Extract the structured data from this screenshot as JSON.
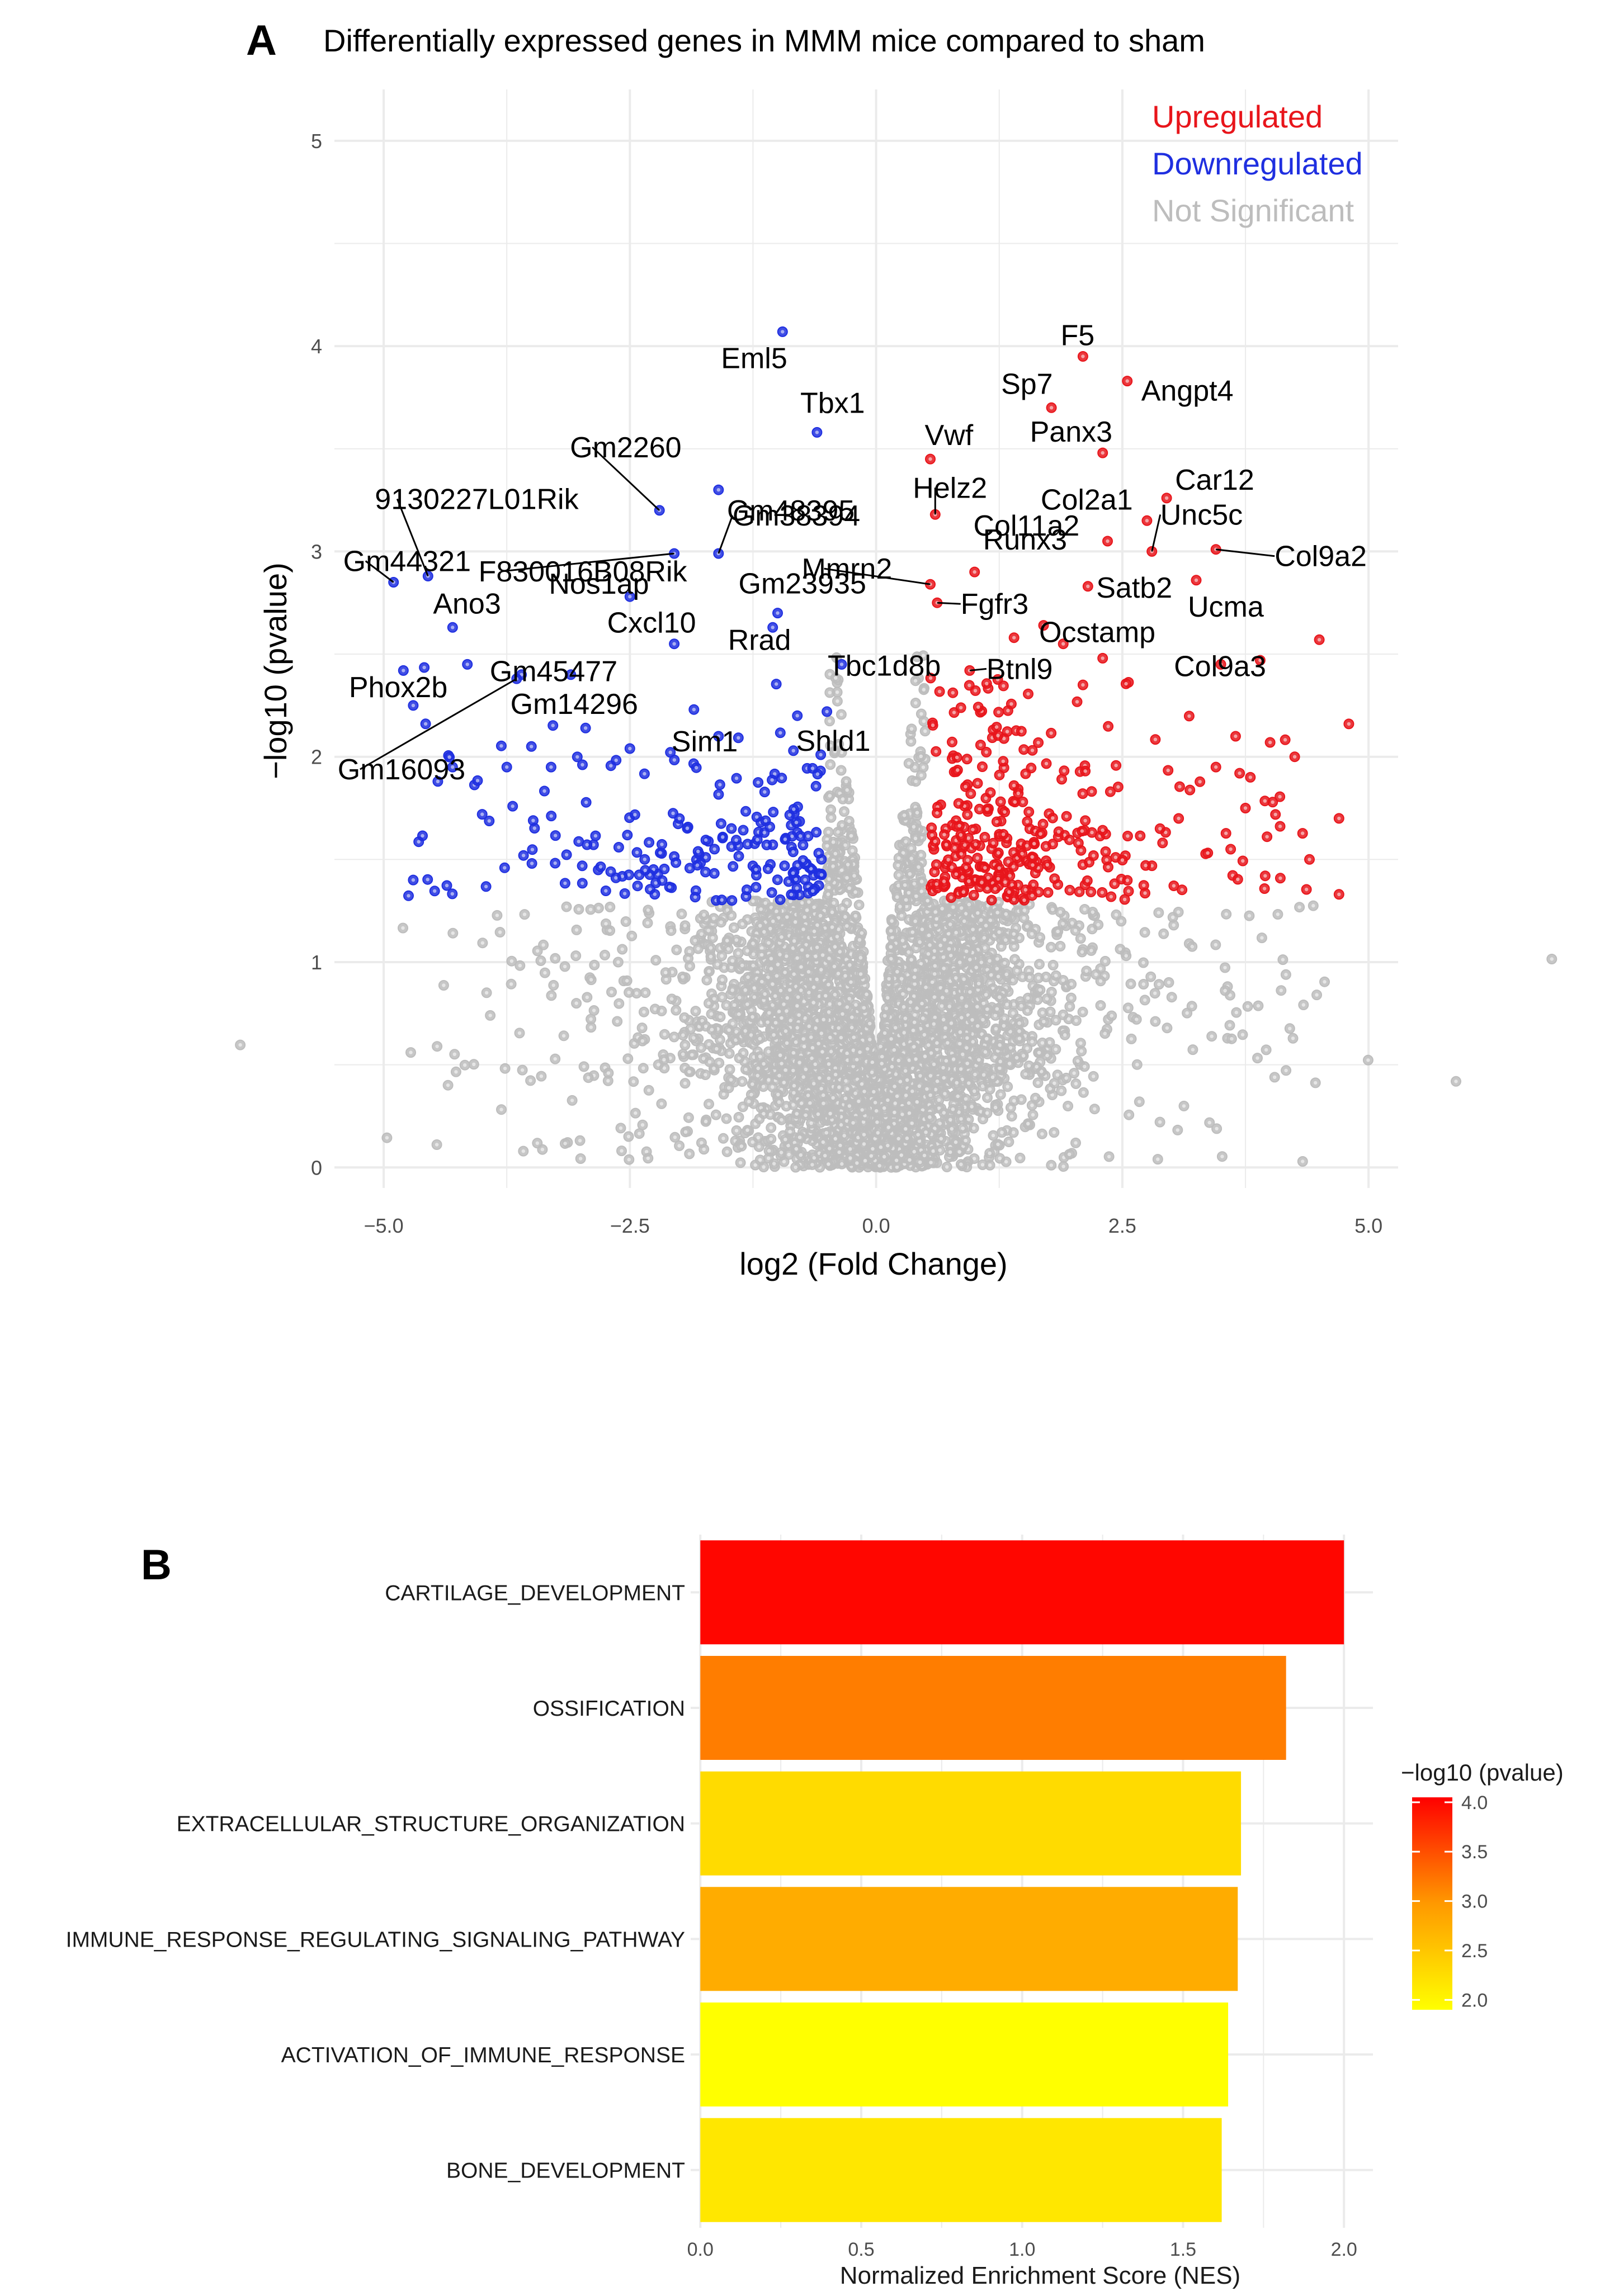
{
  "panel_a": {
    "letter": "A",
    "title": "Differentially expressed genes in MMM mice compared to sham"
  },
  "panel_b": {
    "letter": "B"
  },
  "colors": {
    "up": "#e8151b",
    "down": "#1f2fe0",
    "ns": "#bdbdbd",
    "grid": "#ebebeb",
    "axis_text": "#4d4d4d",
    "text": "#000000"
  },
  "chart_data": [
    {
      "type": "scatter",
      "title": "Differentially expressed genes in MMM mice compared to sham",
      "xlabel": "log2 (Fold Change)",
      "ylabel": "−log10 (pvalue)",
      "xlim": [
        -5.5,
        5.3
      ],
      "ylim": [
        -0.1,
        5.25
      ],
      "x_ticks": [
        -5.0,
        -2.5,
        0.0,
        2.5,
        5.0
      ],
      "x_tick_labels": [
        "−5.0",
        "−2.5",
        "0.0",
        "2.5",
        "5.0"
      ],
      "y_ticks": [
        0,
        1,
        2,
        3,
        4,
        5
      ],
      "y_tick_labels": [
        "0",
        "1",
        "2",
        "3",
        "4",
        "5"
      ],
      "grid": true,
      "legend_position": "top-right",
      "legend": [
        {
          "label": "Upregulated",
          "key": "up"
        },
        {
          "label": "Downregulated",
          "key": "down"
        },
        {
          "label": "Not Significant",
          "key": "ns"
        }
      ],
      "labeled_genes": [
        {
          "gene": "F5",
          "x": 2.1,
          "y": 3.95,
          "group": "up"
        },
        {
          "gene": "Angpt4",
          "x": 2.55,
          "y": 3.83,
          "group": "up"
        },
        {
          "gene": "Sp7",
          "x": 1.78,
          "y": 3.7,
          "group": "up"
        },
        {
          "gene": "Panx3",
          "x": 2.3,
          "y": 3.48,
          "group": "up"
        },
        {
          "gene": "Vwf",
          "x": 0.55,
          "y": 3.45,
          "group": "up"
        },
        {
          "gene": "Car12",
          "x": 2.95,
          "y": 3.26,
          "group": "up"
        },
        {
          "gene": "Helz2",
          "x": 0.6,
          "y": 3.18,
          "group": "up"
        },
        {
          "gene": "Col2a1",
          "x": 2.75,
          "y": 3.15,
          "group": "up"
        },
        {
          "gene": "Col11a2",
          "x": 2.35,
          "y": 3.05,
          "group": "up"
        },
        {
          "gene": "Unc5c",
          "x": 2.8,
          "y": 3.0,
          "group": "up"
        },
        {
          "gene": "Col9a2",
          "x": 3.45,
          "y": 3.01,
          "group": "up"
        },
        {
          "gene": "Runx3",
          "x": 1.0,
          "y": 2.9,
          "group": "up"
        },
        {
          "gene": "Mmrn2",
          "x": 0.55,
          "y": 2.84,
          "group": "up"
        },
        {
          "gene": "Satb2",
          "x": 2.15,
          "y": 2.83,
          "group": "up"
        },
        {
          "gene": "Ucma",
          "x": 3.25,
          "y": 2.86,
          "group": "up"
        },
        {
          "gene": "Fgfr3",
          "x": 0.62,
          "y": 2.75,
          "group": "up"
        },
        {
          "gene": "Col9a3",
          "x": 4.5,
          "y": 2.57,
          "group": "up"
        },
        {
          "gene": "Ocstamp",
          "x": 1.7,
          "y": 2.64,
          "group": "up"
        },
        {
          "gene": "Btnl9",
          "x": 0.95,
          "y": 2.42,
          "group": "up"
        },
        {
          "gene": "Eml5",
          "x": -0.95,
          "y": 4.07,
          "group": "down"
        },
        {
          "gene": "Tbx1",
          "x": -0.6,
          "y": 3.58,
          "group": "down"
        },
        {
          "gene": "Gm48395",
          "x": -1.6,
          "y": 3.3,
          "group": "down"
        },
        {
          "gene": "Gm2260",
          "x": -2.2,
          "y": 3.2,
          "group": "down"
        },
        {
          "gene": "Gm38394",
          "x": -1.6,
          "y": 2.99,
          "group": "down"
        },
        {
          "gene": "F830016B08Rik",
          "x": -2.05,
          "y": 2.99,
          "group": "down"
        },
        {
          "gene": "9130227L01Rik",
          "x": -4.55,
          "y": 2.88,
          "group": "down"
        },
        {
          "gene": "Gm44321",
          "x": -4.9,
          "y": 2.85,
          "group": "down"
        },
        {
          "gene": "Nos1ap",
          "x": -2.5,
          "y": 2.78,
          "group": "down"
        },
        {
          "gene": "Gm23935",
          "x": -1.0,
          "y": 2.7,
          "group": "down"
        },
        {
          "gene": "Ano3",
          "x": -4.3,
          "y": 2.63,
          "group": "down"
        },
        {
          "gene": "Rrad",
          "x": -1.05,
          "y": 2.63,
          "group": "down"
        },
        {
          "gene": "Cxcl10",
          "x": -2.05,
          "y": 2.55,
          "group": "down"
        },
        {
          "gene": "Tbc1d8b",
          "x": -0.35,
          "y": 2.45,
          "group": "down"
        },
        {
          "gene": "Gm45477",
          "x": -4.15,
          "y": 2.45,
          "group": "down"
        },
        {
          "gene": "Phox2b",
          "x": -4.7,
          "y": 2.25,
          "group": "down"
        },
        {
          "gene": "Gm14296",
          "x": -3.6,
          "y": 2.4,
          "group": "down"
        },
        {
          "gene": "Sim1",
          "x": -1.85,
          "y": 2.23,
          "group": "down"
        },
        {
          "gene": "Shld1",
          "x": -0.5,
          "y": 2.22,
          "group": "down"
        },
        {
          "gene": "Gm16093",
          "x": -3.65,
          "y": 2.38,
          "group": "down"
        }
      ],
      "extra_up": [
        [
          1.9,
          2.55
        ],
        [
          2.3,
          2.48
        ],
        [
          3.5,
          2.45
        ],
        [
          3.9,
          2.47
        ],
        [
          3.65,
          2.1
        ],
        [
          4.25,
          2.0
        ],
        [
          3.45,
          1.95
        ],
        [
          3.75,
          1.75
        ],
        [
          4.4,
          1.5
        ],
        [
          4.7,
          1.7
        ],
        [
          3.6,
          1.55
        ],
        [
          4.7,
          1.33
        ],
        [
          3.95,
          1.42
        ],
        [
          4.8,
          2.16
        ],
        [
          4.0,
          2.07
        ],
        [
          3.8,
          1.9
        ],
        [
          2.1,
          2.35
        ],
        [
          1.4,
          2.58
        ]
      ],
      "extra_down": [
        [
          -4.8,
          2.42
        ],
        [
          -4.3,
          1.95
        ],
        [
          -4.7,
          1.4
        ],
        [
          -3.3,
          1.95
        ],
        [
          -3.5,
          2.05
        ],
        [
          -2.5,
          2.04
        ],
        [
          -1.6,
          2.1
        ],
        [
          -0.8,
          2.2
        ],
        [
          -2.95,
          2.14
        ],
        [
          -4.45,
          1.88
        ],
        [
          -3.75,
          1.95
        ],
        [
          -3.1,
          2.4
        ]
      ],
      "counts": {
        "up": 320,
        "down": 200,
        "ns": 4200
      },
      "fc_threshold": 0.5,
      "p_threshold": 1.3
    },
    {
      "type": "bar",
      "orientation": "horizontal",
      "categories": [
        "CARTILAGE_DEVELOPMENT",
        "OSSIFICATION",
        "EXTRACELLULAR_STRUCTURE_ORGANIZATION",
        "IMMUNE_RESPONSE_REGULATING_SIGNALING_PATHWAY",
        "ACTIVATION_OF_IMMUNE_RESPONSE",
        "BONE_DEVELOPMENT"
      ],
      "values": [
        2.0,
        1.82,
        1.68,
        1.67,
        1.64,
        1.62
      ],
      "color_values": [
        4.0,
        3.0,
        2.2,
        2.6,
        1.9,
        2.1
      ],
      "xlabel": "Normalized Enrichment Score (NES)",
      "xlim": [
        -0.03,
        2.09
      ],
      "x_ticks": [
        0.0,
        0.5,
        1.0,
        1.5,
        2.0
      ],
      "x_tick_labels": [
        "0.0",
        "0.5",
        "1.0",
        "1.5",
        "2.0"
      ],
      "grid": true,
      "colorbar": {
        "title": "−log10 (pvalue)",
        "range": [
          1.9,
          4.05
        ],
        "ticks": [
          4.0,
          3.5,
          3.0,
          2.5,
          2.0
        ],
        "tick_labels": [
          "4.0",
          "3.5",
          "3.0",
          "2.5",
          "2.0"
        ],
        "low_color": "#ffff00",
        "high_color": "#ff0000",
        "position": "right"
      }
    }
  ]
}
